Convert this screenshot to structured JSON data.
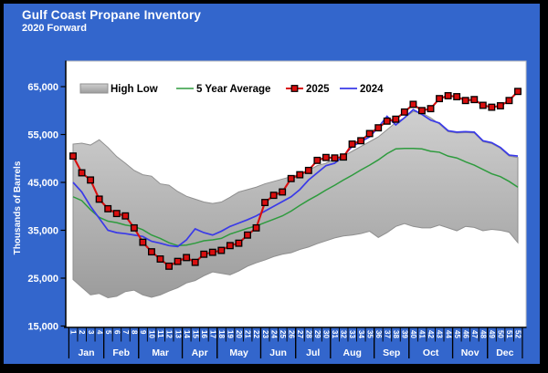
{
  "page": {
    "title": "Gulf Coast Propane Inventory",
    "subtitle": "2020 Forward"
  },
  "colors": {
    "page_background": "#3366CC",
    "page_border": "#000000",
    "plot_background": "#FFFFFF",
    "band_fill": "#C0C0C0",
    "band_edge": "#8F8F8F",
    "avg_line": "#2E9B3E",
    "line_2025": "#D90E0E",
    "marker_edge_2025": "#000000",
    "line_2024": "#3A3AE8",
    "axis_text": "#FFFFFF",
    "legend_text": "#000000"
  },
  "chart_data": {
    "type": "line",
    "title": "Gulf Coast Propane Inventory 2020 Forward",
    "xlabel": "",
    "ylabel": "Thousands of Barrels",
    "ylim": [
      15000,
      65000
    ],
    "grid": false,
    "legend_position": "top-inside",
    "yticks": [
      {
        "value": 15000,
        "label": "15,000"
      },
      {
        "value": 25000,
        "label": "25,000"
      },
      {
        "value": 35000,
        "label": "35,000"
      },
      {
        "value": 45000,
        "label": "45,000"
      },
      {
        "value": 55000,
        "label": "55,000"
      },
      {
        "value": 65000,
        "label": "65,000"
      }
    ],
    "weeks": [
      "1",
      "2",
      "3",
      "4",
      "5",
      "6",
      "7",
      "8",
      "9",
      "10",
      "11",
      "12",
      "13",
      "14",
      "15",
      "16",
      "17",
      "18",
      "19",
      "20",
      "21",
      "22",
      "23",
      "24",
      "25",
      "26",
      "27",
      "28",
      "29",
      "30",
      "31",
      "32",
      "33",
      "34",
      "35",
      "36",
      "37",
      "38",
      "39",
      "40",
      "41",
      "42",
      "43",
      "44",
      "45",
      "46",
      "47",
      "48",
      "49",
      "50",
      "51",
      "52"
    ],
    "months": [
      {
        "label": "Jan",
        "start": 1,
        "end": 4
      },
      {
        "label": "Feb",
        "start": 5,
        "end": 8
      },
      {
        "label": "Mar",
        "start": 9,
        "end": 13
      },
      {
        "label": "Apr",
        "start": 14,
        "end": 17
      },
      {
        "label": "May",
        "start": 18,
        "end": 22
      },
      {
        "label": "Jun",
        "start": 23,
        "end": 26
      },
      {
        "label": "Jul",
        "start": 27,
        "end": 30
      },
      {
        "label": "Aug",
        "start": 31,
        "end": 35
      },
      {
        "label": "Sep",
        "start": 36,
        "end": 39
      },
      {
        "label": "Oct",
        "start": 40,
        "end": 44
      },
      {
        "label": "Nov",
        "start": 45,
        "end": 48
      },
      {
        "label": "Dec",
        "start": 49,
        "end": 52
      }
    ],
    "series": [
      {
        "name": "High Low",
        "type": "band",
        "color": "#C0C0C0",
        "high": [
          53000,
          53200,
          52800,
          53900,
          52300,
          50400,
          49000,
          47500,
          46600,
          46300,
          44700,
          44400,
          43100,
          42100,
          41500,
          40900,
          40600,
          40900,
          41900,
          43000,
          43500,
          44000,
          44700,
          45200,
          45700,
          46200,
          46700,
          47500,
          48500,
          49000,
          50000,
          50500,
          51500,
          52500,
          53500,
          54500,
          56000,
          57500,
          58500,
          59800,
          59500,
          58500,
          57200,
          55600,
          55300,
          55400,
          55300,
          53500,
          53100,
          52100,
          50500,
          50200
        ],
        "low": [
          24700,
          23100,
          21500,
          21800,
          20900,
          21200,
          22200,
          22500,
          21500,
          21000,
          21500,
          22300,
          23000,
          24000,
          24500,
          25500,
          26300,
          26000,
          25700,
          26500,
          27500,
          28200,
          28800,
          29500,
          30000,
          30300,
          31000,
          31500,
          32200,
          32800,
          33400,
          33800,
          34000,
          34300,
          34800,
          33500,
          34500,
          35800,
          36400,
          35800,
          35500,
          35500,
          36100,
          35500,
          34900,
          35800,
          35600,
          34900,
          35200,
          35000,
          34600,
          32400
        ]
      },
      {
        "name": "5 Year Average",
        "type": "line",
        "color": "#2E9B3E",
        "values": [
          42000,
          41200,
          39300,
          37700,
          36900,
          36600,
          36100,
          35800,
          35100,
          34000,
          33300,
          32400,
          31800,
          31900,
          32300,
          32800,
          33000,
          33300,
          34200,
          34800,
          35400,
          35900,
          36600,
          37300,
          38000,
          39000,
          40200,
          41300,
          42300,
          43400,
          44400,
          45500,
          46500,
          47600,
          48600,
          49700,
          51000,
          52000,
          52100,
          52100,
          52000,
          51500,
          51300,
          50500,
          50100,
          49300,
          48600,
          47700,
          46800,
          46200,
          45200,
          44000
        ]
      },
      {
        "name": "2025",
        "type": "line",
        "marker": "square",
        "color": "#D90E0E",
        "values": [
          50500,
          47000,
          45500,
          41500,
          39500,
          38500,
          38000,
          35500,
          32500,
          30500,
          29000,
          27500,
          28500,
          29300,
          28300,
          30000,
          30400,
          30800,
          31800,
          32300,
          34000,
          35500,
          40800,
          42300,
          43000,
          45800,
          46600,
          47500,
          49600,
          50200,
          50100,
          50300,
          53000,
          53700,
          55200,
          56400,
          57800,
          58200,
          59700,
          61300,
          60000,
          60400,
          62500,
          63100,
          62900,
          62100,
          62300,
          61100,
          60700,
          61000,
          62100,
          64000
        ]
      },
      {
        "name": "2024",
        "type": "line",
        "color": "#3A3AE8",
        "values": [
          45000,
          43000,
          40000,
          37500,
          35000,
          34500,
          34300,
          34000,
          33700,
          32700,
          32300,
          31800,
          31600,
          33000,
          35300,
          34500,
          34000,
          34800,
          35800,
          36500,
          37200,
          38000,
          39000,
          40000,
          41000,
          42000,
          43500,
          45500,
          47000,
          48500,
          49000,
          50500,
          52500,
          53500,
          54500,
          56500,
          58800,
          57000,
          58500,
          60200,
          59200,
          58000,
          57400,
          55800,
          55500,
          55600,
          55500,
          53700,
          53300,
          52300,
          50700,
          50500
        ]
      }
    ]
  }
}
